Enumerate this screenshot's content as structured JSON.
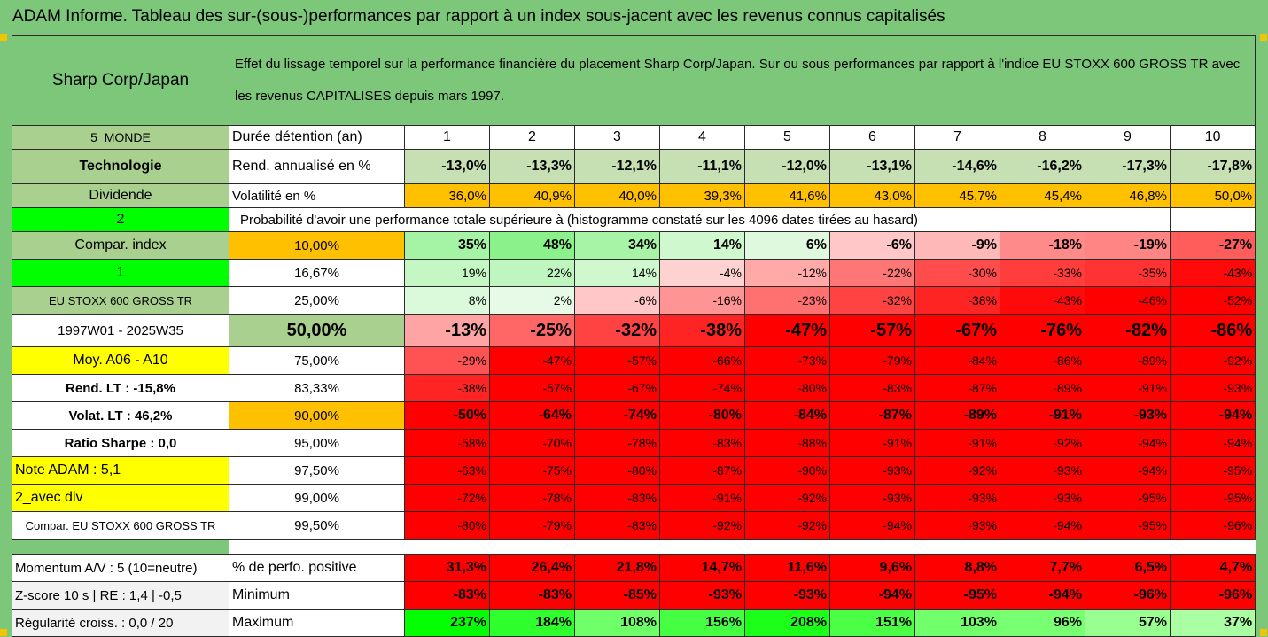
{
  "title": "ADAM Informe. Tableau des sur-(sous-)performances par rapport à un index sous-jacent avec les revenus connus capitalisés",
  "header": {
    "name": "Sharp Corp/Japan",
    "description": "Effet du lissage temporel sur la performance financière du placement Sharp Corp/Japan. Sur ou sous performances par rapport à l'indice EU STOXX 600 GROSS TR avec les revenus CAPITALISES depuis mars 1997."
  },
  "left_column": {
    "zone": "5_MONDE",
    "sector": "Technologie",
    "dividend": "Dividende",
    "num2": "2",
    "compar_index": "Compar. index",
    "num1": "1",
    "index_name": "EU STOXX 600 GROSS TR",
    "period": "1997W01 - 2025W35",
    "moy": "Moy. A06 - A10",
    "rend_lt": "Rend. LT :   -15,8%",
    "volat_lt": "Volat. LT :   46,2%",
    "sharpe": "Ratio Sharpe :   0,0",
    "note": "Note ADAM : 5,1",
    "avec_div": "2_avec div",
    "compar_eu": "Compar. EU STOXX 600 GROSS TR"
  },
  "row_labels": {
    "duration": "Durée détention (an)",
    "rend": "Rend. annualisé en %",
    "volat": "Volatilité en %",
    "proba": "Probabilité d'avoir une performance totale supérieure à (histogramme constaté sur les 4096 dates tirées au hasard)"
  },
  "years": [
    "1",
    "2",
    "3",
    "4",
    "5",
    "6",
    "7",
    "8",
    "9",
    "10"
  ],
  "rend": [
    "-13,0%",
    "-13,3%",
    "-12,1%",
    "-11,1%",
    "-12,0%",
    "-13,1%",
    "-14,6%",
    "-16,2%",
    "-17,3%",
    "-17,8%"
  ],
  "volat": [
    "36,0%",
    "40,9%",
    "40,0%",
    "39,3%",
    "41,6%",
    "43,0%",
    "45,7%",
    "45,4%",
    "46,8%",
    "50,0%"
  ],
  "quantile_rows": [
    {
      "q": "10,00%",
      "v": [
        "35%",
        "48%",
        "34%",
        "14%",
        "6%",
        "-6%",
        "-9%",
        "-18%",
        "-19%",
        "-27%"
      ]
    },
    {
      "q": "16,67%",
      "v": [
        "19%",
        "22%",
        "14%",
        "-4%",
        "-12%",
        "-22%",
        "-30%",
        "-33%",
        "-35%",
        "-43%"
      ]
    },
    {
      "q": "25,00%",
      "v": [
        "8%",
        "2%",
        "-6%",
        "-16%",
        "-23%",
        "-32%",
        "-38%",
        "-43%",
        "-46%",
        "-52%"
      ]
    },
    {
      "q": "50,00%",
      "v": [
        "-13%",
        "-25%",
        "-32%",
        "-38%",
        "-47%",
        "-57%",
        "-67%",
        "-76%",
        "-82%",
        "-86%"
      ]
    },
    {
      "q": "75,00%",
      "v": [
        "-29%",
        "-47%",
        "-57%",
        "-66%",
        "-73%",
        "-79%",
        "-84%",
        "-86%",
        "-89%",
        "-92%"
      ]
    },
    {
      "q": "83,33%",
      "v": [
        "-38%",
        "-57%",
        "-67%",
        "-74%",
        "-80%",
        "-83%",
        "-87%",
        "-89%",
        "-91%",
        "-93%"
      ]
    },
    {
      "q": "90,00%",
      "v": [
        "-50%",
        "-64%",
        "-74%",
        "-80%",
        "-84%",
        "-87%",
        "-89%",
        "-91%",
        "-93%",
        "-94%"
      ]
    },
    {
      "q": "95,00%",
      "v": [
        "-58%",
        "-70%",
        "-78%",
        "-83%",
        "-88%",
        "-91%",
        "-91%",
        "-92%",
        "-94%",
        "-94%"
      ]
    },
    {
      "q": "97,50%",
      "v": [
        "-63%",
        "-75%",
        "-80%",
        "-87%",
        "-90%",
        "-93%",
        "-92%",
        "-93%",
        "-94%",
        "-95%"
      ]
    },
    {
      "q": "99,00%",
      "v": [
        "-72%",
        "-78%",
        "-83%",
        "-91%",
        "-92%",
        "-93%",
        "-93%",
        "-93%",
        "-95%",
        "-95%"
      ]
    },
    {
      "q": "99,50%",
      "v": [
        "-80%",
        "-79%",
        "-83%",
        "-92%",
        "-92%",
        "-94%",
        "-93%",
        "-94%",
        "-95%",
        "-96%"
      ]
    }
  ],
  "footer": [
    {
      "left": "Momentum A/V : 5 (10=neutre)",
      "label": "% de perfo. positive",
      "v": [
        "31,3%",
        "26,4%",
        "21,8%",
        "14,7%",
        "11,6%",
        "9,6%",
        "8,8%",
        "7,7%",
        "6,5%",
        "4,7%"
      ]
    },
    {
      "left": "Z-score 10 s  |  RE : 1,4  |  -0,5",
      "label": "Minimum",
      "v": [
        "-83%",
        "-83%",
        "-85%",
        "-93%",
        "-93%",
        "-94%",
        "-95%",
        "-94%",
        "-96%",
        "-96%"
      ]
    },
    {
      "left": "Régularité croiss. : 0,0 / 20",
      "label": "Maximum",
      "v": [
        "237%",
        "184%",
        "108%",
        "156%",
        "208%",
        "151%",
        "103%",
        "96%",
        "57%",
        "37%"
      ]
    }
  ],
  "colors": {
    "green_header": "#7dc77a",
    "bright_green": "#00ff00",
    "yellow": "#ffff00",
    "orange": "#ffc000",
    "red": "#ff0000"
  }
}
